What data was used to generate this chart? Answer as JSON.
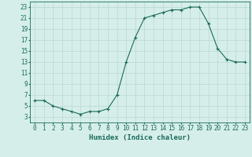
{
  "x": [
    0,
    1,
    2,
    3,
    4,
    5,
    6,
    7,
    8,
    9,
    10,
    11,
    12,
    13,
    14,
    15,
    16,
    17,
    18,
    19,
    20,
    21,
    22,
    23
  ],
  "y": [
    6,
    6,
    5,
    4.5,
    4,
    3.5,
    4,
    4,
    4.5,
    7,
    13,
    17.5,
    21,
    21.5,
    22,
    22.5,
    22.5,
    23,
    23,
    20,
    15.5,
    13.5,
    13,
    13
  ],
  "line_color": "#1a6b5a",
  "marker": "+",
  "marker_size": 3,
  "bg_color": "#d6eeea",
  "grid_color": "#b8d8d0",
  "xlabel": "Humidex (Indice chaleur)",
  "xlim": [
    -0.5,
    23.5
  ],
  "ylim": [
    2,
    24
  ],
  "yticks": [
    3,
    5,
    7,
    9,
    11,
    13,
    15,
    17,
    19,
    21,
    23
  ],
  "xticks": [
    0,
    1,
    2,
    3,
    4,
    5,
    6,
    7,
    8,
    9,
    10,
    11,
    12,
    13,
    14,
    15,
    16,
    17,
    18,
    19,
    20,
    21,
    22,
    23
  ],
  "tick_fontsize": 5.5,
  "xlabel_fontsize": 6.5,
  "linewidth": 0.8,
  "markeredgewidth": 0.8
}
